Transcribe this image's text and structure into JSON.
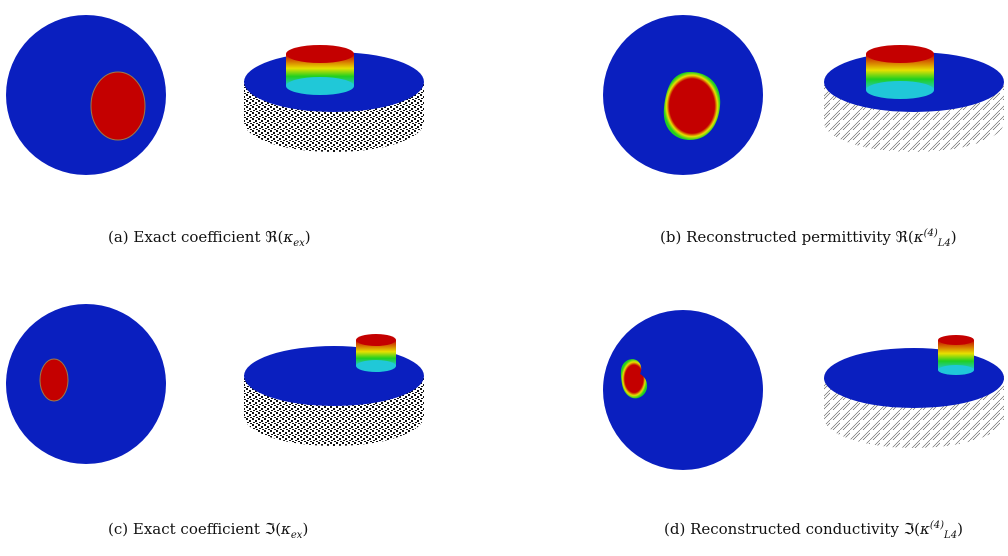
{
  "figure": {
    "panels": [
      {
        "id": "a",
        "caption_prefix": "(a) Exact coefficient ",
        "caption_symbol": "ℜ",
        "caption_arg": "κ",
        "caption_sub": "ex",
        "caption_sup": ""
      },
      {
        "id": "b",
        "caption_prefix": "(b) Reconstructed permittivity ",
        "caption_symbol": "ℜ",
        "caption_arg": "κ",
        "caption_sub": "L4",
        "caption_sup": "(4)"
      },
      {
        "id": "c",
        "caption_prefix": "(c) Exact coefficient ",
        "caption_symbol": "ℑ",
        "caption_arg": "κ",
        "caption_sub": "ex",
        "caption_sup": ""
      },
      {
        "id": "d",
        "caption_prefix": "(d) Reconstructed conductivity ",
        "caption_symbol": "ℑ",
        "caption_arg": "κ",
        "caption_sub": "L4",
        "caption_sup": "(4)"
      }
    ],
    "colors": {
      "background_disk": "#0a1fbf",
      "inclusion": "#c40000",
      "inclusion_edge": "#8a6a3a",
      "gradient_green": "#20d020",
      "gradient_yellow": "#e8e000",
      "gradient_cyan": "#20c8d8",
      "mesh": "#111111"
    }
  }
}
